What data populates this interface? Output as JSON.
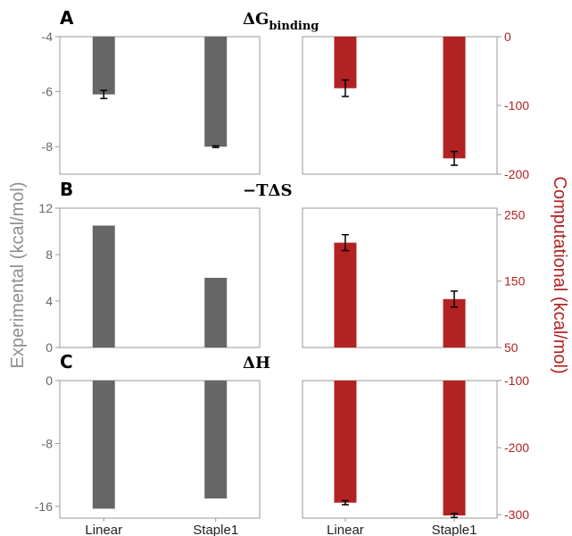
{
  "figure": {
    "ylabel_left": "Experimental (kcal/mol)",
    "ylabel_right": "Computational (kcal/mol)",
    "colors": {
      "experimental": "#666666",
      "computational": "#b22222",
      "axis": "#9a9a9a"
    }
  },
  "chart_data": [
    {
      "type": "bar",
      "panel": "A",
      "title": "ΔG",
      "title_subscript": "binding",
      "categories": [
        "Linear",
        "Staple1"
      ],
      "left": {
        "values": [
          -6.1,
          -8.0
        ],
        "errors": [
          0.15,
          0.03
        ],
        "ylim": [
          -9.0,
          -4.0
        ],
        "ticks": [
          -4,
          -6,
          -8
        ],
        "tick_labels": [
          "-4",
          "-6",
          "-8"
        ]
      },
      "right": {
        "values": [
          -75,
          -177
        ],
        "errors": [
          12,
          10
        ],
        "ylim": [
          -200,
          0
        ],
        "ticks": [
          0,
          -100,
          -200
        ],
        "tick_labels": [
          "0",
          "-100",
          "-200"
        ]
      }
    },
    {
      "type": "bar",
      "panel": "B",
      "title": "−TΔS",
      "title_subscript": "",
      "categories": [
        "Linear",
        "Staple1"
      ],
      "left": {
        "values": [
          10.5,
          6.0
        ],
        "errors": [
          0,
          0
        ],
        "ylim": [
          0,
          12
        ],
        "ticks": [
          0,
          4,
          8,
          12
        ],
        "tick_labels": [
          "0",
          "4",
          "8",
          "12"
        ]
      },
      "right": {
        "values": [
          208,
          123
        ],
        "errors": [
          12,
          12
        ],
        "ylim": [
          50,
          260
        ],
        "ticks": [
          50,
          150,
          250
        ],
        "tick_labels": [
          "50",
          "150",
          "250"
        ]
      }
    },
    {
      "type": "bar",
      "panel": "C",
      "title": "ΔH",
      "title_subscript": "",
      "categories": [
        "Linear",
        "Staple1"
      ],
      "left": {
        "values": [
          -16.3,
          -15.0
        ],
        "errors": [
          0,
          0
        ],
        "ylim": [
          -17.5,
          0
        ],
        "ticks": [
          0,
          -8,
          -16
        ],
        "tick_labels": [
          "0",
          "-8",
          "-16"
        ]
      },
      "right": {
        "values": [
          -282,
          -301
        ],
        "errors": [
          3,
          3
        ],
        "ylim": [
          -305,
          -100
        ],
        "ticks": [
          -100,
          -200,
          -300
        ],
        "tick_labels": [
          "-100",
          "-200",
          "-300"
        ]
      }
    }
  ]
}
